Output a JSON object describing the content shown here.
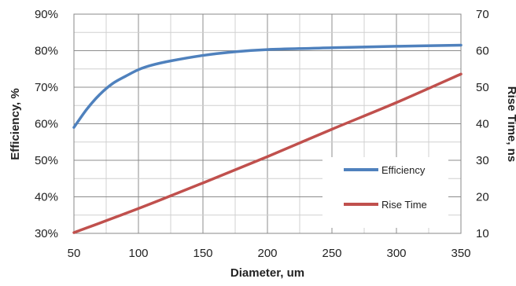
{
  "chart_data": {
    "type": "line",
    "title": "",
    "xlabel": "Diameter, um",
    "ylabel": "Efficiency, %",
    "y2label": "Rise Time, ns",
    "xlim": [
      50,
      350
    ],
    "ylim": [
      0.3,
      0.9
    ],
    "y2lim": [
      10,
      70
    ],
    "grid": true,
    "legend_position": "bottom-right",
    "x_ticks": [
      "50",
      "100",
      "150",
      "200",
      "250",
      "300",
      "350"
    ],
    "y_ticks": [
      "30%",
      "40%",
      "50%",
      "60%",
      "70%",
      "80%",
      "90%"
    ],
    "y2_ticks": [
      "10",
      "20",
      "30",
      "40",
      "50",
      "60",
      "70"
    ],
    "series": [
      {
        "name": "Efficiency",
        "axis": "left",
        "color": "#4F81BD",
        "x": [
          50,
          60,
          70,
          80,
          90,
          100,
          110,
          125,
          150,
          175,
          200,
          250,
          300,
          350
        ],
        "y": [
          0.59,
          0.64,
          0.68,
          0.71,
          0.73,
          0.748,
          0.76,
          0.772,
          0.787,
          0.797,
          0.803,
          0.808,
          0.812,
          0.815
        ]
      },
      {
        "name": "Rise Time",
        "axis": "right",
        "color": "#C0504D",
        "x": [
          50,
          100,
          150,
          200,
          250,
          300,
          350
        ],
        "y": [
          10.2,
          16.8,
          23.8,
          31.0,
          38.5,
          45.8,
          53.6
        ]
      }
    ]
  }
}
